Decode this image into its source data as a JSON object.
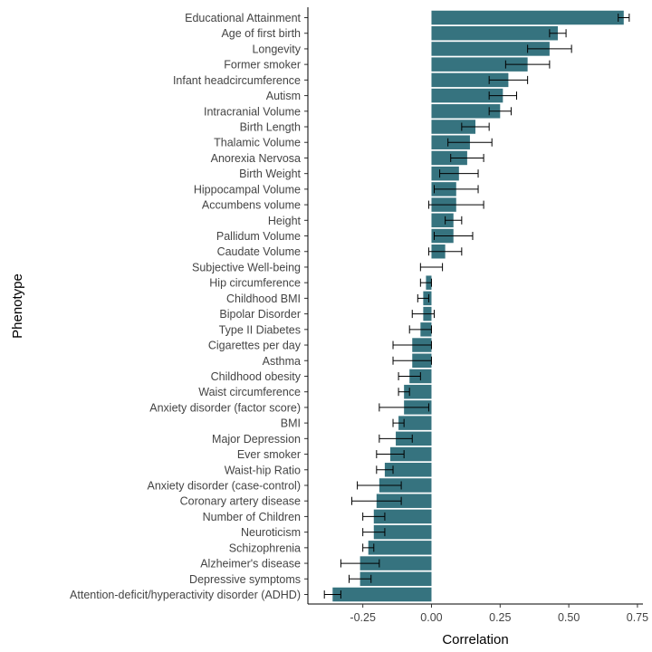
{
  "chart_data": {
    "type": "bar",
    "orientation": "horizontal",
    "xlabel": "Correlation",
    "ylabel": "Phenotype",
    "xlim": [
      -0.45,
      0.77
    ],
    "xticks": [
      -0.25,
      0.0,
      0.25,
      0.5,
      0.75
    ],
    "xtick_labels": [
      "-0.25",
      "0.00",
      "0.25",
      "0.50",
      "0.75"
    ],
    "bar_color": "#36737f",
    "grid": false,
    "categories": [
      "Educational Attainment",
      "Age of first birth",
      "Longevity",
      "Former smoker",
      "Infant headcircumference",
      "Autism",
      "Intracranial Volume",
      "Birth Length",
      "Thalamic Volume",
      "Anorexia Nervosa",
      "Birth Weight",
      "Hippocampal Volume",
      "Accumbens volume",
      "Height",
      "Pallidum Volume",
      "Caudate Volume",
      "Subjective Well-being",
      "Hip circumference",
      "Childhood BMI",
      "Bipolar Disorder",
      "Type II Diabetes",
      "Cigarettes per day",
      "Asthma",
      "Childhood obesity",
      "Waist circumference",
      "Anxiety disorder (factor score)",
      "BMI",
      "Major Depression",
      "Ever smoker",
      "Waist-hip Ratio",
      "Anxiety disorder (case-control)",
      "Coronary artery disease",
      "Number of Children",
      "Neuroticism",
      "Schizophrenia",
      "Alzheimer's disease",
      "Depressive symptoms",
      "Attention-deficit/hyperactivity disorder (ADHD)"
    ],
    "values": [
      0.7,
      0.46,
      0.43,
      0.35,
      0.28,
      0.26,
      0.25,
      0.16,
      0.14,
      0.13,
      0.1,
      0.09,
      0.09,
      0.08,
      0.08,
      0.05,
      0.0,
      -0.02,
      -0.03,
      -0.03,
      -0.04,
      -0.07,
      -0.07,
      -0.08,
      -0.1,
      -0.1,
      -0.12,
      -0.13,
      -0.15,
      -0.17,
      -0.19,
      -0.2,
      -0.21,
      -0.21,
      -0.23,
      -0.26,
      -0.26,
      -0.36
    ],
    "errors": [
      0.02,
      0.03,
      0.08,
      0.08,
      0.07,
      0.05,
      0.04,
      0.05,
      0.08,
      0.06,
      0.07,
      0.08,
      0.1,
      0.03,
      0.07,
      0.06,
      0.04,
      0.02,
      0.02,
      0.04,
      0.04,
      0.07,
      0.07,
      0.04,
      0.02,
      0.09,
      0.02,
      0.06,
      0.05,
      0.03,
      0.08,
      0.09,
      0.04,
      0.04,
      0.02,
      0.07,
      0.04,
      0.03
    ]
  }
}
